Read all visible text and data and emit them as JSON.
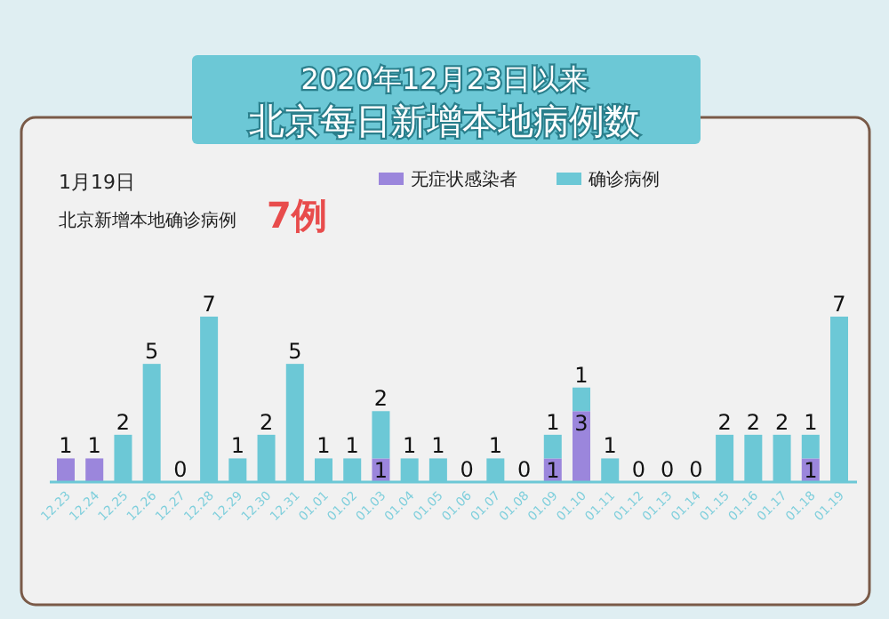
{
  "chart_data": {
    "type": "bar",
    "stacked": true,
    "title": "2020年12月23日以来",
    "subtitle": "北京每日新增本地病例数",
    "categories": [
      "12.23",
      "12.24",
      "12.25",
      "12.26",
      "12.27",
      "12.28",
      "12.29",
      "12.30",
      "12.31",
      "01.01",
      "01.02",
      "01.03",
      "01.04",
      "01.05",
      "01.06",
      "01.07",
      "01.08",
      "01.09",
      "01.10",
      "01.11",
      "01.12",
      "01.13",
      "01.14",
      "01.15",
      "01.16",
      "01.17",
      "01.18",
      "01.19"
    ],
    "series": [
      {
        "name": "无症状感染者",
        "color": "#9b86dc",
        "values": [
          1,
          1,
          null,
          null,
          null,
          null,
          null,
          null,
          null,
          null,
          null,
          1,
          null,
          null,
          null,
          null,
          null,
          1,
          3,
          null,
          null,
          null,
          null,
          null,
          null,
          null,
          1,
          null
        ]
      },
      {
        "name": "确诊病例",
        "color": "#6cc8d6",
        "values": [
          null,
          null,
          2,
          5,
          0,
          7,
          1,
          2,
          5,
          1,
          1,
          2,
          1,
          1,
          0,
          1,
          0,
          1,
          1,
          1,
          0,
          0,
          0,
          2,
          2,
          2,
          1,
          7
        ]
      }
    ],
    "data_labels": true,
    "legend": "top right",
    "annotations": [
      "1月19日",
      "北京新增本地确诊病例",
      "7例"
    ]
  }
}
